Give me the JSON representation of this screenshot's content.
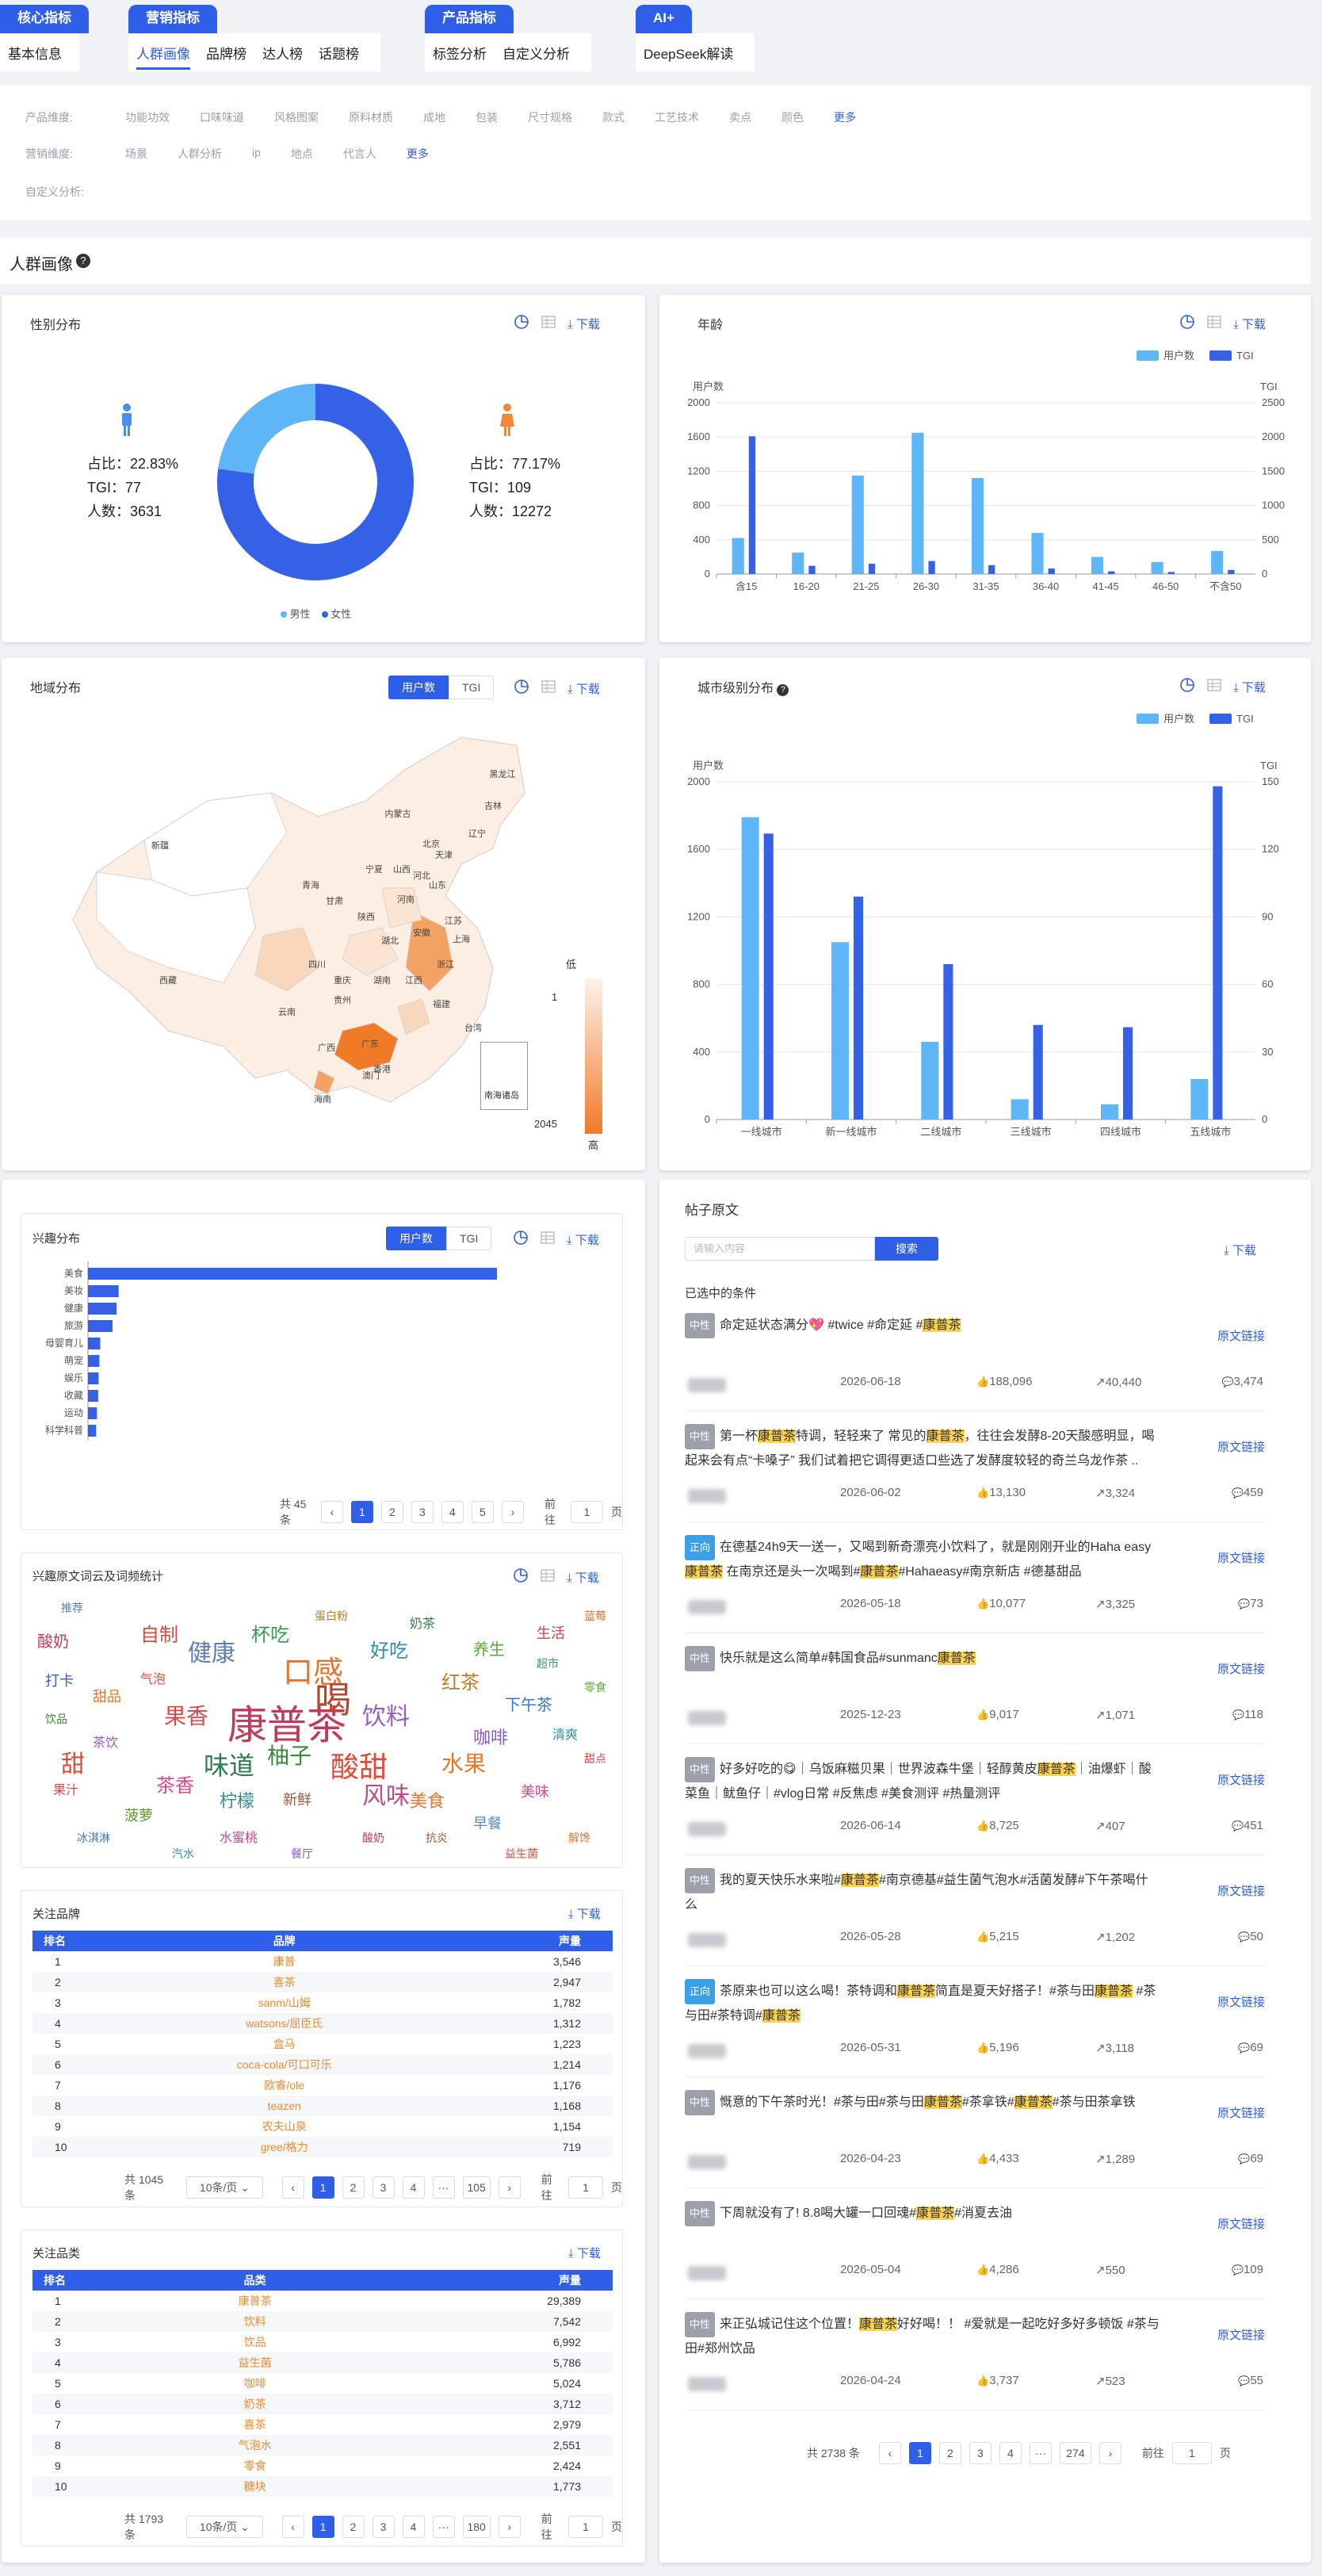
{
  "nav": {
    "groups": [
      {
        "label": "核心指标",
        "tabs": [
          "基本信息"
        ],
        "active": -1
      },
      {
        "label": "营销指标",
        "tabs": [
          "人群画像",
          "品牌榜",
          "达人榜",
          "话题榜"
        ],
        "active": 0
      },
      {
        "label": "产品指标",
        "tabs": [
          "标签分析",
          "自定义分析"
        ],
        "active": -1
      },
      {
        "label": "AI+",
        "tabs": [
          "DeepSeek解读"
        ],
        "active": -1
      }
    ]
  },
  "filters": {
    "product_label": "产品维度:",
    "product_items": [
      "功能功效",
      "口味味道",
      "风格图案",
      "原料材质",
      "成地",
      "包装",
      "尺寸规格",
      "款式",
      "工艺技术",
      "卖点",
      "颜色"
    ],
    "more": "更多",
    "marketing_label": "营销维度:",
    "marketing_items": [
      "场景",
      "人群分析",
      "ip",
      "地点",
      "代言人"
    ],
    "custom_label": "自定义分析:"
  },
  "section_title": "人群画像",
  "download": "下载",
  "gender": {
    "title": "性别分布",
    "male": {
      "ratio": "占比：22.83%",
      "tgi": "TGI：77",
      "count": "人数：3631",
      "pct": 22.83
    },
    "female": {
      "ratio": "占比：77.17%",
      "tgi": "TGI：109",
      "count": "人数：12272",
      "pct": 77.17
    },
    "legend": [
      "男性",
      "女性"
    ],
    "colors": {
      "male": "#5fb6f7",
      "female": "#3461e6"
    }
  },
  "age": {
    "title": "年龄",
    "legend": [
      "用户数",
      "TGI"
    ],
    "left_axis_title": "用户数",
    "right_axis_title": "TGI",
    "chart_data": {
      "type": "bar",
      "categories": [
        "含15",
        "16-20",
        "21-25",
        "26-30",
        "31-35",
        "36-40",
        "41-45",
        "46-50",
        "不含50"
      ],
      "series": [
        {
          "name": "用户数",
          "values": [
            420,
            250,
            1150,
            1650,
            1120,
            480,
            200,
            140,
            270
          ]
        },
        {
          "name": "TGI",
          "values": [
            2010,
            120,
            150,
            190,
            130,
            80,
            40,
            30,
            60
          ]
        }
      ],
      "yticks_left": [
        0,
        400,
        800,
        1200,
        1600,
        2000
      ],
      "yticks_right": [
        0,
        500,
        1000,
        1500,
        2000,
        2500
      ]
    }
  },
  "region": {
    "title": "地域分布",
    "toggle": [
      "用户数",
      "TGI"
    ],
    "provinces": [
      "黑龙江",
      "吉林",
      "辽宁",
      "内蒙古",
      "新疆",
      "北京",
      "天津",
      "河北",
      "山西",
      "宁夏",
      "青海",
      "甘肃",
      "陕西",
      "山东",
      "河南",
      "江苏",
      "安徽",
      "上海",
      "浙江",
      "湖北",
      "四川",
      "重庆",
      "湖南",
      "江西",
      "福建",
      "西藏",
      "贵州",
      "广西",
      "广东",
      "云南",
      "台湾",
      "香港",
      "澳门",
      "海南"
    ],
    "inset": "南海诸岛",
    "scale": {
      "min": "1",
      "max": "2045",
      "low": "低",
      "high": "高"
    }
  },
  "city": {
    "title": "城市级别分布",
    "legend": [
      "用户数",
      "TGI"
    ],
    "left_axis_title": "用户数",
    "right_axis_title": "TGI",
    "chart_data": {
      "type": "bar",
      "categories": [
        "一线城市",
        "新一线城市",
        "二线城市",
        "三线城市",
        "四线城市",
        "五线城市"
      ],
      "series": [
        {
          "name": "用户数",
          "values": [
            1790,
            1050,
            460,
            120,
            90,
            240
          ]
        },
        {
          "name": "TGI",
          "values": [
            127,
            99,
            69,
            42,
            41,
            148
          ]
        }
      ],
      "yticks_left": [
        0,
        400,
        800,
        1200,
        1600,
        2000
      ],
      "yticks_right": [
        0,
        30,
        60,
        90,
        120,
        150
      ]
    }
  },
  "interest": {
    "title": "兴趣分布",
    "toggle": [
      "用户数",
      "TGI"
    ],
    "chart_data": {
      "type": "bar",
      "orientation": "horizontal",
      "categories": [
        "美食",
        "美妆",
        "健康",
        "旅游",
        "母婴育儿",
        "萌宠",
        "娱乐",
        "收藏",
        "运动",
        "科学科普"
      ],
      "values": [
        1000,
        75,
        70,
        60,
        30,
        28,
        26,
        25,
        22,
        20
      ]
    },
    "total": "共 45 条",
    "pages": [
      "1",
      "2",
      "3",
      "4",
      "5"
    ],
    "goto": "前往",
    "goto_val": "1",
    "page_unit": "页"
  },
  "wordcloud": {
    "title": "兴趣原文词云及词频统计",
    "words": [
      {
        "t": "康普茶",
        "s": 50,
        "c": "#c23a5a"
      },
      {
        "t": "口感",
        "s": 38,
        "c": "#e8742a"
      },
      {
        "t": "健康",
        "s": 30,
        "c": "#5a7fb0"
      },
      {
        "t": "饮料",
        "s": 30,
        "c": "#9c59c4"
      },
      {
        "t": "喝",
        "s": 46,
        "c": "#b8452c"
      },
      {
        "t": "酸甜",
        "s": 36,
        "c": "#e04a3a"
      },
      {
        "t": "味道",
        "s": 32,
        "c": "#2e7d4f"
      },
      {
        "t": "风味",
        "s": 30,
        "c": "#c24a8a"
      },
      {
        "t": "柚子",
        "s": 28,
        "c": "#3a8a3a"
      },
      {
        "t": "水果",
        "s": 28,
        "c": "#e8742a"
      },
      {
        "t": "果香",
        "s": 28,
        "c": "#d84a4a"
      },
      {
        "t": "茶香",
        "s": 24,
        "c": "#d84a8a"
      },
      {
        "t": "好吃",
        "s": 24,
        "c": "#2e90a8"
      },
      {
        "t": "自制",
        "s": 24,
        "c": "#e04a3a"
      },
      {
        "t": "杯吃",
        "s": 24,
        "c": "#3a9a5a"
      },
      {
        "t": "红茶",
        "s": 24,
        "c": "#c27a2a"
      },
      {
        "t": "咖啡",
        "s": 22,
        "c": "#8a5ac4"
      },
      {
        "t": "甜",
        "s": 30,
        "c": "#e04a3a"
      },
      {
        "t": "柠檬",
        "s": 22,
        "c": "#3a8a9a"
      },
      {
        "t": "美食",
        "s": 22,
        "c": "#e8742a"
      },
      {
        "t": "养生",
        "s": 20,
        "c": "#5aaa3a"
      },
      {
        "t": "酸奶",
        "s": 20,
        "c": "#c23a5a"
      },
      {
        "t": "下午茶",
        "s": 20,
        "c": "#3a7ac4"
      },
      {
        "t": "新鲜",
        "s": 18,
        "c": "#9a5a3a"
      },
      {
        "t": "甜品",
        "s": 18,
        "c": "#e8742a"
      },
      {
        "t": "美味",
        "s": 18,
        "c": "#d84a8a"
      },
      {
        "t": "菠萝",
        "s": 18,
        "c": "#5a9a2a"
      },
      {
        "t": "打卡",
        "s": 18,
        "c": "#3a5ac4"
      },
      {
        "t": "生活",
        "s": 18,
        "c": "#c24a4a"
      },
      {
        "t": "早餐",
        "s": 18,
        "c": "#5a8ac4"
      },
      {
        "t": "清爽",
        "s": 16,
        "c": "#2e90a8"
      },
      {
        "t": "茶饮",
        "s": 16,
        "c": "#9c59c4"
      },
      {
        "t": "果汁",
        "s": 16,
        "c": "#d84a4a"
      },
      {
        "t": "奶茶",
        "s": 16,
        "c": "#2e7d4f"
      },
      {
        "t": "气泡",
        "s": 16,
        "c": "#e04a3a"
      },
      {
        "t": "蛋白粉",
        "s": 14,
        "c": "#c27a2a"
      },
      {
        "t": "超市",
        "s": 14,
        "c": "#3a9a5a"
      },
      {
        "t": "推荐",
        "s": 14,
        "c": "#5a7fb0"
      },
      {
        "t": "解馋",
        "s": 14,
        "c": "#e8742a"
      },
      {
        "t": "酸奶",
        "s": 14,
        "c": "#c23a5a"
      },
      {
        "t": "冰淇淋",
        "s": 14,
        "c": "#3a7ac4"
      },
      {
        "t": "抗炎",
        "s": 14,
        "c": "#9a5a3a"
      },
      {
        "t": "水蜜桃",
        "s": 16,
        "c": "#c24a8a"
      },
      {
        "t": "零食",
        "s": 14,
        "c": "#5aaa3a"
      },
      {
        "t": "甜点",
        "s": 14,
        "c": "#d84a4a"
      },
      {
        "t": "汽水",
        "s": 14,
        "c": "#2e90a8"
      },
      {
        "t": "益生菌",
        "s": 14,
        "c": "#e04a3a"
      },
      {
        "t": "餐厅",
        "s": 14,
        "c": "#8a5ac4"
      },
      {
        "t": "饮品",
        "s": 14,
        "c": "#3a8a3a"
      },
      {
        "t": "蓝莓",
        "s": 14,
        "c": "#e8742a"
      }
    ]
  },
  "brands": {
    "title": "关注品牌",
    "headers": [
      "排名",
      "品牌",
      "声量"
    ],
    "rows": [
      [
        "1",
        "康普",
        "3,546"
      ],
      [
        "2",
        "喜茶",
        "2,947"
      ],
      [
        "3",
        "sanm/山姆",
        "1,782"
      ],
      [
        "4",
        "watsons/屈臣氏",
        "1,312"
      ],
      [
        "5",
        "盒马",
        "1,223"
      ],
      [
        "6",
        "coca-cola/可口可乐",
        "1,214"
      ],
      [
        "7",
        "欧睿/ole",
        "1,176"
      ],
      [
        "8",
        "teazen",
        "1,168"
      ],
      [
        "9",
        "农夫山泉",
        "1,154"
      ],
      [
        "10",
        "gree/格力",
        "719"
      ]
    ],
    "total": "共 1045 条",
    "page_size": "10条/页",
    "pages": [
      "1",
      "2",
      "3",
      "4",
      "···",
      "105"
    ],
    "goto": "前往",
    "goto_val": "1",
    "page_unit": "页"
  },
  "categories": {
    "title": "关注品类",
    "headers": [
      "排名",
      "品类",
      "声量"
    ],
    "rows": [
      [
        "1",
        "康普茶",
        "29,389"
      ],
      [
        "2",
        "饮料",
        "7,542"
      ],
      [
        "3",
        "饮品",
        "6,992"
      ],
      [
        "4",
        "益生菌",
        "5,786"
      ],
      [
        "5",
        "咖啡",
        "5,024"
      ],
      [
        "6",
        "奶茶",
        "3,712"
      ],
      [
        "7",
        "喜茶",
        "2,979"
      ],
      [
        "8",
        "气泡水",
        "2,551"
      ],
      [
        "9",
        "零食",
        "2,424"
      ],
      [
        "10",
        "糖块",
        "1,773"
      ]
    ],
    "total": "共 1793 条",
    "page_size": "10条/页",
    "pages": [
      "1",
      "2",
      "3",
      "4",
      "···",
      "180"
    ],
    "goto": "前往",
    "goto_val": "1",
    "page_unit": "页"
  },
  "posts": {
    "title": "帖子原文",
    "search_placeholder": "请输入内容",
    "search_btn": "搜索",
    "condition": "已选中的条件",
    "link": "原文链接",
    "items": [
      {
        "tag": "中性",
        "text": "命定延状态满分💖 #twice #命定延 #康普茶",
        "date": "2026-06-18",
        "likes": "188,096",
        "shares": "40,440",
        "comments": "3,474"
      },
      {
        "tag": "中性",
        "text": "第一杯康普茶特调，轻轻来了 常见的康普茶，往往会发酵8-20天酸感明显，喝起来会有点“卡嗓子” 我们试着把它调得更适口些选了发酵度较轻的奇兰乌龙作茶 ..",
        "date": "2026-06-02",
        "likes": "13,130",
        "shares": "3,324",
        "comments": "459"
      },
      {
        "tag": "正向",
        "text": "在德基24h9天一送一，又喝到新奇漂亮小饮料了，就是刚刚开业的Haha easy康普茶 在南京还是头一次喝到#康普茶#Hahaeasy#南京新店 #德基甜品",
        "date": "2026-05-18",
        "likes": "10,077",
        "shares": "3,325",
        "comments": "73"
      },
      {
        "tag": "中性",
        "text": "快乐就是这么简单#韩国食品#sunmanc康普茶",
        "date": "2025-12-23",
        "likes": "9,017",
        "shares": "1,071",
        "comments": "118"
      },
      {
        "tag": "中性",
        "text": "好多好吃的😋｜乌饭麻糍贝果｜世界波森牛堡｜轻醇黄皮康普茶｜油爆虾｜酸菜鱼｜鱿鱼仔｜#vlog日常 #反焦虑 #美食测评 #热量测评",
        "date": "2026-06-14",
        "likes": "8,725",
        "shares": "407",
        "comments": "451"
      },
      {
        "tag": "中性",
        "text": "我的夏天快乐水来啦#康普茶#南京德基#益生菌气泡水#活菌发酵#下午茶喝什么",
        "date": "2026-05-28",
        "likes": "5,215",
        "shares": "1,202",
        "comments": "50"
      },
      {
        "tag": "正向",
        "text": "茶原来也可以这么喝！茶特调和康普茶简直是夏天好搭子！#茶与田康普茶 #茶与田#茶特调#康普茶",
        "date": "2026-05-31",
        "likes": "5,196",
        "shares": "3,118",
        "comments": "69"
      },
      {
        "tag": "中性",
        "text": "慨意的下午茶时光！#茶与田#茶与田康普茶#茶拿铁#康普茶#茶与田茶拿铁",
        "date": "2026-04-23",
        "likes": "4,433",
        "shares": "1,289",
        "comments": "69"
      },
      {
        "tag": "中性",
        "text": "下周就没有了! 8.8喝大罐一口回魂#康普茶#消夏去油",
        "date": "2026-05-04",
        "likes": "4,286",
        "shares": "550",
        "comments": "109"
      },
      {
        "tag": "中性",
        "text": "来正弘城记住这个位置！康普茶好好喝！！ #爱就是一起吃好多好多顿饭 #茶与田#郑州饮品",
        "date": "2026-04-24",
        "likes": "3,737",
        "shares": "523",
        "comments": "55"
      }
    ],
    "total": "共 2738 条",
    "pages": [
      "1",
      "2",
      "3",
      "4",
      "···",
      "274"
    ],
    "goto": "前往",
    "goto_val": "1",
    "page_unit": "页"
  }
}
